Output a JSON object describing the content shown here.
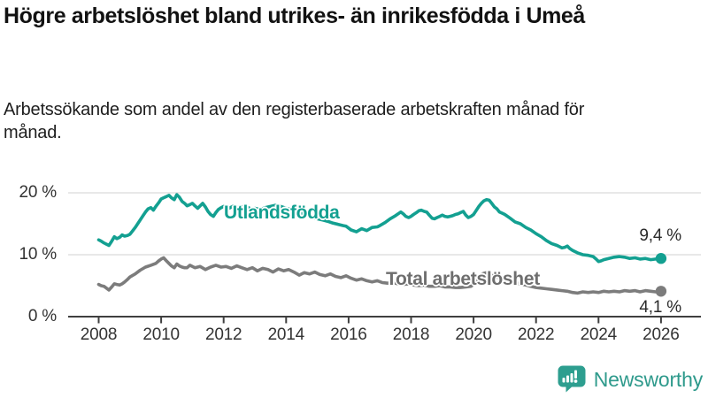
{
  "header": {
    "title": "Högre arbetslöshet bland utrikes- än inrikesfödda i Umeå",
    "subtitle": "Arbetssökande som andel av den registerbaserade arbetskraften månad för månad."
  },
  "chart_data": {
    "type": "line",
    "title": "Högre arbetslöshet bland utrikes- än inrikesfödda i Umeå",
    "xlabel": "",
    "ylabel": "",
    "unit": "%",
    "grid": "horizontal",
    "legend": "inline-labels",
    "xlim": [
      2007.0,
      2026.7
    ],
    "ylim": [
      0,
      21.5
    ],
    "x_ticks": [
      2008,
      2010,
      2012,
      2014,
      2016,
      2018,
      2020,
      2022,
      2024,
      2026
    ],
    "y_ticks": [
      {
        "value": 20,
        "label": "20 %"
      },
      {
        "value": 10,
        "label": "10 %"
      },
      {
        "value": 0,
        "label": "0 %"
      }
    ],
    "series": [
      {
        "name": "Utlandsfödda",
        "color": "#13a091",
        "end_value": 9.4,
        "end_value_label": "9,4 %",
        "points": [
          [
            2008.0,
            12.4
          ],
          [
            2008.08,
            12.2
          ],
          [
            2008.17,
            11.9
          ],
          [
            2008.25,
            11.7
          ],
          [
            2008.33,
            11.5
          ],
          [
            2008.42,
            12.2
          ],
          [
            2008.5,
            12.9
          ],
          [
            2008.58,
            12.6
          ],
          [
            2008.67,
            12.8
          ],
          [
            2008.75,
            13.2
          ],
          [
            2008.83,
            13.0
          ],
          [
            2008.92,
            13.1
          ],
          [
            2009.0,
            13.3
          ],
          [
            2009.08,
            13.8
          ],
          [
            2009.17,
            14.4
          ],
          [
            2009.25,
            15.0
          ],
          [
            2009.33,
            15.6
          ],
          [
            2009.42,
            16.3
          ],
          [
            2009.5,
            16.9
          ],
          [
            2009.58,
            17.4
          ],
          [
            2009.67,
            17.6
          ],
          [
            2009.75,
            17.2
          ],
          [
            2009.83,
            17.8
          ],
          [
            2009.92,
            18.4
          ],
          [
            2010.0,
            19.0
          ],
          [
            2010.08,
            19.2
          ],
          [
            2010.17,
            19.4
          ],
          [
            2010.25,
            19.6
          ],
          [
            2010.33,
            19.2
          ],
          [
            2010.42,
            18.9
          ],
          [
            2010.5,
            19.7
          ],
          [
            2010.58,
            19.3
          ],
          [
            2010.67,
            18.6
          ],
          [
            2010.75,
            18.3
          ],
          [
            2010.83,
            17.9
          ],
          [
            2010.92,
            18.1
          ],
          [
            2011.0,
            18.3
          ],
          [
            2011.08,
            17.9
          ],
          [
            2011.17,
            17.5
          ],
          [
            2011.25,
            17.9
          ],
          [
            2011.33,
            18.3
          ],
          [
            2011.42,
            17.7
          ],
          [
            2011.5,
            17.0
          ],
          [
            2011.58,
            16.5
          ],
          [
            2011.67,
            16.2
          ],
          [
            2011.75,
            16.8
          ],
          [
            2011.83,
            17.3
          ],
          [
            2011.92,
            17.6
          ],
          [
            2012.0,
            17.8
          ],
          [
            2012.08,
            17.7
          ],
          [
            2012.17,
            17.5
          ],
          [
            2012.25,
            17.7
          ],
          [
            2012.33,
            17.9
          ],
          [
            2012.42,
            17.7
          ],
          [
            2012.5,
            17.6
          ],
          [
            2012.58,
            17.7
          ],
          [
            2012.67,
            17.9
          ],
          [
            2012.75,
            17.7
          ],
          [
            2012.83,
            17.5
          ],
          [
            2012.92,
            17.4
          ],
          [
            2013.0,
            17.5
          ],
          [
            2013.17,
            17.3
          ],
          [
            2013.33,
            17.6
          ],
          [
            2013.5,
            17.8
          ],
          [
            2013.67,
            18.0
          ],
          [
            2013.83,
            17.8
          ],
          [
            2014.0,
            17.5
          ],
          [
            2014.17,
            17.3
          ],
          [
            2014.33,
            17.0
          ],
          [
            2014.5,
            16.7
          ],
          [
            2014.67,
            16.4
          ],
          [
            2014.83,
            16.1
          ],
          [
            2015.0,
            15.8
          ],
          [
            2015.17,
            15.6
          ],
          [
            2015.33,
            15.4
          ],
          [
            2015.5,
            15.1
          ],
          [
            2015.67,
            14.9
          ],
          [
            2015.83,
            14.7
          ],
          [
            2015.92,
            14.6
          ],
          [
            2016.08,
            14.0
          ],
          [
            2016.25,
            13.7
          ],
          [
            2016.42,
            14.2
          ],
          [
            2016.58,
            13.9
          ],
          [
            2016.75,
            14.4
          ],
          [
            2016.92,
            14.5
          ],
          [
            2017.0,
            14.7
          ],
          [
            2017.17,
            15.2
          ],
          [
            2017.33,
            15.8
          ],
          [
            2017.5,
            16.3
          ],
          [
            2017.67,
            16.9
          ],
          [
            2017.75,
            16.6
          ],
          [
            2017.83,
            16.2
          ],
          [
            2017.92,
            16.0
          ],
          [
            2018.0,
            16.2
          ],
          [
            2018.08,
            16.5
          ],
          [
            2018.17,
            16.8
          ],
          [
            2018.25,
            17.1
          ],
          [
            2018.33,
            17.2
          ],
          [
            2018.42,
            17.0
          ],
          [
            2018.5,
            16.9
          ],
          [
            2018.58,
            16.4
          ],
          [
            2018.67,
            15.9
          ],
          [
            2018.75,
            15.8
          ],
          [
            2018.83,
            16.0
          ],
          [
            2018.92,
            16.2
          ],
          [
            2019.0,
            16.4
          ],
          [
            2019.08,
            16.2
          ],
          [
            2019.17,
            16.1
          ],
          [
            2019.25,
            16.2
          ],
          [
            2019.33,
            16.3
          ],
          [
            2019.42,
            16.5
          ],
          [
            2019.5,
            16.6
          ],
          [
            2019.58,
            16.8
          ],
          [
            2019.67,
            17.0
          ],
          [
            2019.75,
            16.4
          ],
          [
            2019.83,
            16.0
          ],
          [
            2019.92,
            16.2
          ],
          [
            2020.0,
            16.5
          ],
          [
            2020.08,
            17.1
          ],
          [
            2020.17,
            17.8
          ],
          [
            2020.25,
            18.3
          ],
          [
            2020.33,
            18.7
          ],
          [
            2020.42,
            18.9
          ],
          [
            2020.5,
            18.8
          ],
          [
            2020.58,
            18.3
          ],
          [
            2020.67,
            17.7
          ],
          [
            2020.75,
            17.4
          ],
          [
            2020.83,
            16.9
          ],
          [
            2020.92,
            16.7
          ],
          [
            2021.0,
            16.5
          ],
          [
            2021.17,
            15.9
          ],
          [
            2021.33,
            15.3
          ],
          [
            2021.5,
            15.0
          ],
          [
            2021.67,
            14.4
          ],
          [
            2021.83,
            14.0
          ],
          [
            2022.0,
            13.4
          ],
          [
            2022.17,
            12.9
          ],
          [
            2022.33,
            12.3
          ],
          [
            2022.5,
            11.8
          ],
          [
            2022.67,
            11.5
          ],
          [
            2022.83,
            11.1
          ],
          [
            2022.92,
            11.2
          ],
          [
            2023.0,
            11.4
          ],
          [
            2023.08,
            11.0
          ],
          [
            2023.17,
            10.7
          ],
          [
            2023.33,
            10.3
          ],
          [
            2023.5,
            10.0
          ],
          [
            2023.67,
            9.9
          ],
          [
            2023.83,
            9.7
          ],
          [
            2023.92,
            9.3
          ],
          [
            2024.0,
            8.9
          ],
          [
            2024.08,
            9.0
          ],
          [
            2024.17,
            9.2
          ],
          [
            2024.33,
            9.4
          ],
          [
            2024.5,
            9.6
          ],
          [
            2024.67,
            9.7
          ],
          [
            2024.83,
            9.6
          ],
          [
            2025.0,
            9.4
          ],
          [
            2025.17,
            9.5
          ],
          [
            2025.33,
            9.3
          ],
          [
            2025.5,
            9.4
          ],
          [
            2025.67,
            9.2
          ],
          [
            2025.83,
            9.3
          ],
          [
            2026.0,
            9.4
          ]
        ]
      },
      {
        "name": "Total arbetslöshet",
        "color": "#7c7c7c",
        "end_value": 4.1,
        "end_value_label": "4,1 %",
        "points": [
          [
            2008.0,
            5.2
          ],
          [
            2008.08,
            5.0
          ],
          [
            2008.17,
            4.9
          ],
          [
            2008.25,
            4.6
          ],
          [
            2008.33,
            4.3
          ],
          [
            2008.42,
            4.8
          ],
          [
            2008.5,
            5.3
          ],
          [
            2008.58,
            5.2
          ],
          [
            2008.67,
            5.1
          ],
          [
            2008.75,
            5.3
          ],
          [
            2008.83,
            5.6
          ],
          [
            2008.92,
            6.0
          ],
          [
            2009.0,
            6.4
          ],
          [
            2009.17,
            6.9
          ],
          [
            2009.33,
            7.5
          ],
          [
            2009.5,
            8.0
          ],
          [
            2009.67,
            8.3
          ],
          [
            2009.83,
            8.6
          ],
          [
            2009.92,
            9.0
          ],
          [
            2010.0,
            9.3
          ],
          [
            2010.08,
            9.5
          ],
          [
            2010.17,
            9.0
          ],
          [
            2010.25,
            8.6
          ],
          [
            2010.33,
            8.2
          ],
          [
            2010.42,
            7.9
          ],
          [
            2010.5,
            8.5
          ],
          [
            2010.58,
            8.2
          ],
          [
            2010.67,
            8.0
          ],
          [
            2010.75,
            7.9
          ],
          [
            2010.83,
            7.9
          ],
          [
            2010.92,
            8.3
          ],
          [
            2011.08,
            7.9
          ],
          [
            2011.25,
            8.1
          ],
          [
            2011.42,
            7.6
          ],
          [
            2011.58,
            8.0
          ],
          [
            2011.75,
            8.3
          ],
          [
            2011.92,
            8.0
          ],
          [
            2012.08,
            8.1
          ],
          [
            2012.25,
            7.8
          ],
          [
            2012.42,
            8.2
          ],
          [
            2012.58,
            7.9
          ],
          [
            2012.75,
            7.6
          ],
          [
            2012.92,
            7.9
          ],
          [
            2013.08,
            7.4
          ],
          [
            2013.25,
            7.8
          ],
          [
            2013.42,
            7.6
          ],
          [
            2013.58,
            7.2
          ],
          [
            2013.75,
            7.7
          ],
          [
            2013.92,
            7.4
          ],
          [
            2014.08,
            7.6
          ],
          [
            2014.25,
            7.2
          ],
          [
            2014.42,
            6.7
          ],
          [
            2014.58,
            7.1
          ],
          [
            2014.75,
            6.9
          ],
          [
            2014.92,
            7.2
          ],
          [
            2015.08,
            6.8
          ],
          [
            2015.25,
            6.6
          ],
          [
            2015.42,
            6.9
          ],
          [
            2015.58,
            6.5
          ],
          [
            2015.75,
            6.3
          ],
          [
            2015.92,
            6.6
          ],
          [
            2016.08,
            6.2
          ],
          [
            2016.25,
            5.9
          ],
          [
            2016.42,
            6.1
          ],
          [
            2016.58,
            5.8
          ],
          [
            2016.75,
            5.6
          ],
          [
            2016.92,
            5.8
          ],
          [
            2017.08,
            5.5
          ],
          [
            2017.25,
            5.4
          ],
          [
            2017.42,
            5.5
          ],
          [
            2017.58,
            5.3
          ],
          [
            2017.75,
            5.2
          ],
          [
            2017.92,
            5.3
          ],
          [
            2018.08,
            5.1
          ],
          [
            2018.25,
            5.0
          ],
          [
            2018.42,
            5.1
          ],
          [
            2018.58,
            4.9
          ],
          [
            2018.75,
            4.9
          ],
          [
            2018.92,
            5.0
          ],
          [
            2019.08,
            4.8
          ],
          [
            2019.25,
            4.8
          ],
          [
            2019.42,
            4.7
          ],
          [
            2019.58,
            4.7
          ],
          [
            2019.75,
            4.8
          ],
          [
            2019.92,
            4.9
          ],
          [
            2020.0,
            5.2
          ],
          [
            2020.08,
            5.7
          ],
          [
            2020.17,
            6.3
          ],
          [
            2020.25,
            6.8
          ],
          [
            2020.33,
            7.0
          ],
          [
            2020.42,
            7.1
          ],
          [
            2020.5,
            6.9
          ],
          [
            2020.58,
            6.7
          ],
          [
            2020.67,
            6.5
          ],
          [
            2020.83,
            6.2
          ],
          [
            2021.0,
            6.0
          ],
          [
            2021.17,
            5.8
          ],
          [
            2021.33,
            5.5
          ],
          [
            2021.5,
            5.3
          ],
          [
            2021.67,
            5.1
          ],
          [
            2021.83,
            4.9
          ],
          [
            2022.0,
            4.7
          ],
          [
            2022.17,
            4.6
          ],
          [
            2022.33,
            4.5
          ],
          [
            2022.5,
            4.4
          ],
          [
            2022.67,
            4.3
          ],
          [
            2022.83,
            4.2
          ],
          [
            2023.0,
            4.1
          ],
          [
            2023.17,
            3.9
          ],
          [
            2023.33,
            3.8
          ],
          [
            2023.5,
            4.0
          ],
          [
            2023.67,
            3.9
          ],
          [
            2023.83,
            4.0
          ],
          [
            2024.0,
            3.9
          ],
          [
            2024.17,
            4.1
          ],
          [
            2024.33,
            4.0
          ],
          [
            2024.5,
            4.1
          ],
          [
            2024.67,
            4.0
          ],
          [
            2024.83,
            4.2
          ],
          [
            2025.0,
            4.1
          ],
          [
            2025.17,
            4.2
          ],
          [
            2025.33,
            4.0
          ],
          [
            2025.5,
            4.2
          ],
          [
            2025.67,
            4.1
          ],
          [
            2025.83,
            4.0
          ],
          [
            2026.0,
            4.1
          ]
        ]
      }
    ]
  },
  "branding": {
    "name": "Newsworthy",
    "logo_icon": "bar-chart-speech-bubble-icon",
    "icon_color": "#2d9e8f",
    "text_color": "#2f9a8c"
  }
}
